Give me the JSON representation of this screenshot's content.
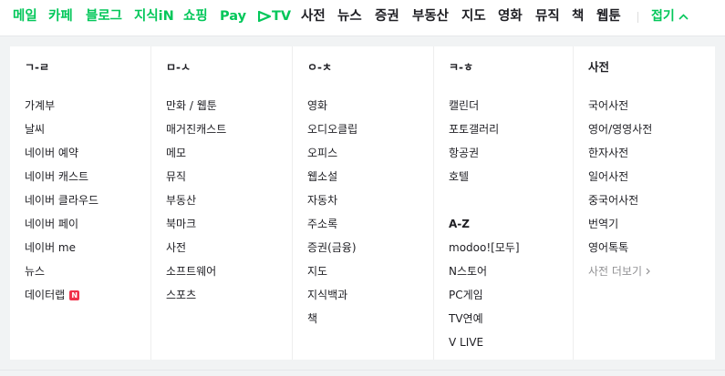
{
  "nav": {
    "items": [
      {
        "label": "메일",
        "color": "green"
      },
      {
        "label": "카페",
        "color": "green"
      },
      {
        "label": "블로그",
        "color": "green"
      },
      {
        "label": "지식iN",
        "color": "green"
      },
      {
        "label": "쇼핑",
        "color": "green"
      },
      {
        "label": "Pay",
        "color": "green"
      }
    ],
    "tv_label": "TV",
    "items2": [
      {
        "label": "사전"
      },
      {
        "label": "뉴스"
      },
      {
        "label": "증권"
      },
      {
        "label": "부동산"
      },
      {
        "label": "지도"
      },
      {
        "label": "영화"
      },
      {
        "label": "뮤직"
      },
      {
        "label": "책"
      },
      {
        "label": "웹툰"
      }
    ],
    "fold_label": "접기",
    "accent": "#03c75a"
  },
  "columns": [
    {
      "head": "ㄱ-ㄹ",
      "links": [
        "가계부",
        "날씨",
        "네이버 예약",
        "네이버 캐스트",
        "네이버 클라우드",
        "네이버 페이",
        "네이버 me",
        "뉴스",
        "데이터랩"
      ],
      "badge": "N"
    },
    {
      "head": "ㅁ-ㅅ",
      "links": [
        "만화 / 웹툰",
        "매거진캐스트",
        "메모",
        "뮤직",
        "부동산",
        "북마크",
        "사전",
        "소프트웨어",
        "스포츠"
      ]
    },
    {
      "head": "ㅇ-ㅊ",
      "links": [
        "영화",
        "오디오클립",
        "오피스",
        "웹소설",
        "자동차",
        "주소록",
        "증권(금융)",
        "지도",
        "지식백과",
        "책"
      ]
    },
    {
      "head": "ㅋ-ㅎ",
      "links": [
        "캘린더",
        "포토갤러리",
        "항공권",
        "호텔"
      ],
      "subhead": "A-Z",
      "links2": [
        "modoo![모두]",
        "N스토어",
        "PC게임",
        "TV연예",
        "V LIVE"
      ]
    },
    {
      "head": "사전",
      "links": [
        "국어사전",
        "영어/영영사전",
        "한자사전",
        "일어사전",
        "중국어사전",
        "번역기",
        "영어톡톡"
      ],
      "more": "사전 더보기"
    }
  ]
}
